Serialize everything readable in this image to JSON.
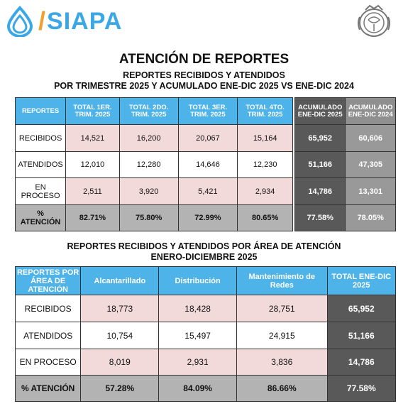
{
  "header": {
    "logo_text": "SIAPA",
    "logo_slash": "/"
  },
  "titles": {
    "main": "ATENCIÓN DE REPORTES",
    "sub1_line1": "REPORTES RECIBIDOS Y ATENDIDOS",
    "sub1_line2": "POR TRIMESTRE 2025 Y ACUMULADO ENE-DIC 2025 VS ENE-DIC 2024",
    "sub2_line1": "REPORTES RECIBIDOS Y ATENDIDOS POR ÁREA DE ATENCIÓN",
    "sub2_line2": "ENERO-DICIEMBRE 2025"
  },
  "quarterly": {
    "headers": [
      "REPORTES",
      "TOTAL 1ER. TRIM. 2025",
      "TOTAL 2DO. TRIM. 2025",
      "TOTAL 3ER. TRIM. 2025",
      "TOTAL 4TO. TRIM. 2025"
    ],
    "rows": [
      {
        "label": "RECIBIDOS",
        "values": [
          "14,521",
          "16,200",
          "20,067",
          "15,164"
        ]
      },
      {
        "label": "ATENDIDOS",
        "values": [
          "12,010",
          "12,280",
          "14,646",
          "12,230"
        ]
      },
      {
        "label": "EN PROCESO",
        "values": [
          "2,511",
          "3,920",
          "5,421",
          "2,934"
        ]
      },
      {
        "label": "% ATENCIÓN",
        "values": [
          "82.71%",
          "75.80%",
          "72.99%",
          "80.65%"
        ]
      }
    ]
  },
  "accumulated": {
    "headers": [
      "ACUMULADO ENE-DIC 2025",
      "ACUMULADO ENE-DIC 2024"
    ],
    "rows": [
      [
        "65,952",
        "60,606"
      ],
      [
        "51,166",
        "47,305"
      ],
      [
        "14,786",
        "13,301"
      ],
      [
        "77.58%",
        "78.05%"
      ]
    ]
  },
  "area": {
    "headers": [
      "REPORTES POR ÁREA DE ATENCIÓN",
      "Alcantarillado",
      "Distribución",
      "Mantenimiento de Redes",
      "TOTAL ENE-DIC 2025"
    ],
    "rows": [
      {
        "label": "RECIBIDOS",
        "values": [
          "18,773",
          "18,428",
          "28,751",
          "65,952"
        ]
      },
      {
        "label": "ATENDIDOS",
        "values": [
          "10,754",
          "15,497",
          "24,915",
          "51,166"
        ]
      },
      {
        "label": "EN PROCESO",
        "values": [
          "8,019",
          "2,931",
          "3,836",
          "14,786"
        ]
      },
      {
        "label": "% ATENCIÓN",
        "values": [
          "57.28%",
          "84.09%",
          "86.66%",
          "77.58%"
        ]
      }
    ]
  },
  "colors": {
    "header_blue": "#4eb3e8",
    "pink_cell": "#f2dadb",
    "dark_gray": "#595959",
    "mid_gray": "#999999",
    "logo_blue": "#3aa7e6",
    "logo_orange": "#f0a030"
  }
}
